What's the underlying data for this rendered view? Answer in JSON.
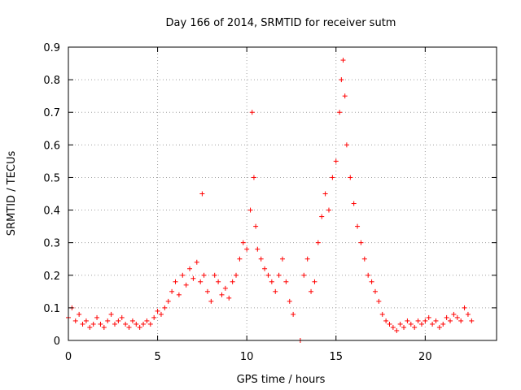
{
  "chart_data": {
    "type": "scatter",
    "title": "Day 166 of 2014, SRMTID for receiver sutm",
    "xlabel": "GPS time / hours",
    "ylabel": "SRMTID / TECUs",
    "xlim": [
      0,
      24
    ],
    "ylim": [
      0,
      0.9
    ],
    "grid": true,
    "x_ticks": [
      0,
      5,
      10,
      15,
      20
    ],
    "y_ticks": [
      0,
      0.1,
      0.2,
      0.3,
      0.4,
      0.5,
      0.6,
      0.7,
      0.8,
      0.9
    ],
    "x_tick_labels": [
      "0",
      "5",
      "10",
      "15",
      "20"
    ],
    "y_tick_labels": [
      "0",
      "0.1",
      "0.2",
      "0.3",
      "0.4",
      "0.5",
      "0.6",
      "0.7",
      "0.8",
      "0.9"
    ],
    "marker": "+",
    "color": "#ff0000",
    "series": [
      {
        "name": "SRMTID",
        "x": [
          0.0,
          0.2,
          0.4,
          0.6,
          0.8,
          1.0,
          1.2,
          1.4,
          1.6,
          1.8,
          2.0,
          2.2,
          2.4,
          2.6,
          2.8,
          3.0,
          3.2,
          3.4,
          3.6,
          3.8,
          4.0,
          4.2,
          4.4,
          4.6,
          4.8,
          5.0,
          5.2,
          5.4,
          5.6,
          5.8,
          6.0,
          6.2,
          6.4,
          6.6,
          6.8,
          7.0,
          7.2,
          7.4,
          7.5,
          7.6,
          7.8,
          8.0,
          8.2,
          8.4,
          8.6,
          8.8,
          9.0,
          9.2,
          9.4,
          9.6,
          9.8,
          10.0,
          10.2,
          10.3,
          10.4,
          10.5,
          10.6,
          10.8,
          11.0,
          11.2,
          11.4,
          11.6,
          11.8,
          12.0,
          12.2,
          12.4,
          12.6,
          13.0,
          13.2,
          13.4,
          13.6,
          13.8,
          14.0,
          14.2,
          14.4,
          14.6,
          14.8,
          15.0,
          15.2,
          15.3,
          15.4,
          15.5,
          15.6,
          15.8,
          16.0,
          16.2,
          16.4,
          16.6,
          16.8,
          17.0,
          17.2,
          17.4,
          17.6,
          17.8,
          18.0,
          18.2,
          18.4,
          18.6,
          18.8,
          19.0,
          19.2,
          19.4,
          19.6,
          19.8,
          20.0,
          20.2,
          20.4,
          20.6,
          20.8,
          21.0,
          21.2,
          21.4,
          21.6,
          21.8,
          22.0,
          22.2,
          22.4,
          22.6
        ],
        "y": [
          0.07,
          0.1,
          0.06,
          0.08,
          0.05,
          0.06,
          0.04,
          0.05,
          0.07,
          0.05,
          0.04,
          0.06,
          0.08,
          0.05,
          0.06,
          0.07,
          0.05,
          0.04,
          0.06,
          0.05,
          0.04,
          0.05,
          0.06,
          0.05,
          0.07,
          0.09,
          0.08,
          0.1,
          0.12,
          0.15,
          0.18,
          0.14,
          0.2,
          0.17,
          0.22,
          0.19,
          0.24,
          0.18,
          0.45,
          0.2,
          0.15,
          0.12,
          0.2,
          0.18,
          0.14,
          0.16,
          0.13,
          0.18,
          0.2,
          0.25,
          0.3,
          0.28,
          0.4,
          0.7,
          0.5,
          0.35,
          0.28,
          0.25,
          0.22,
          0.2,
          0.18,
          0.15,
          0.2,
          0.25,
          0.18,
          0.12,
          0.08,
          0.0,
          0.2,
          0.25,
          0.15,
          0.18,
          0.3,
          0.38,
          0.45,
          0.4,
          0.5,
          0.55,
          0.7,
          0.8,
          0.86,
          0.75,
          0.6,
          0.5,
          0.42,
          0.35,
          0.3,
          0.25,
          0.2,
          0.18,
          0.15,
          0.12,
          0.08,
          0.06,
          0.05,
          0.04,
          0.03,
          0.05,
          0.04,
          0.06,
          0.05,
          0.04,
          0.06,
          0.05,
          0.06,
          0.07,
          0.05,
          0.06,
          0.04,
          0.05,
          0.07,
          0.06,
          0.08,
          0.07,
          0.06,
          0.1,
          0.08,
          0.06
        ]
      }
    ]
  }
}
